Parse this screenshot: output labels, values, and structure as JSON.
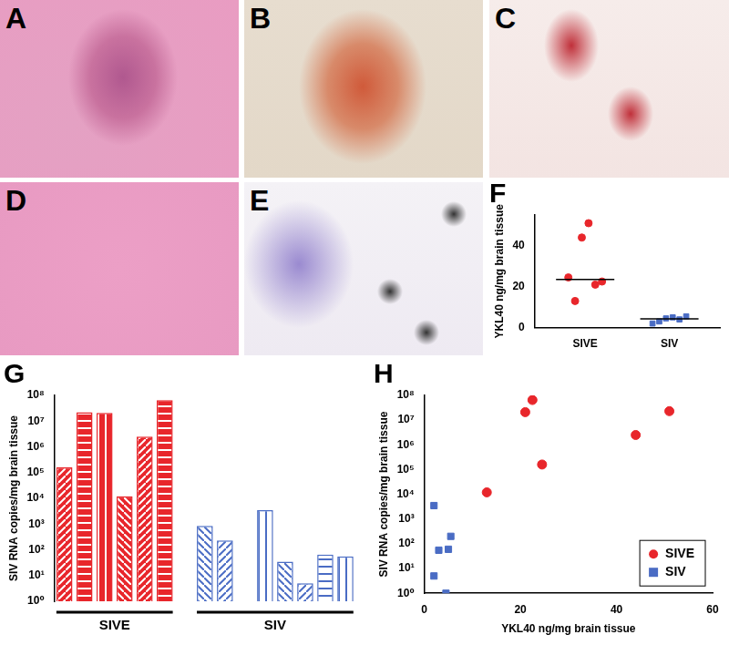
{
  "image_panels": [
    "A",
    "B",
    "C",
    "D",
    "E"
  ],
  "chart_data": [
    {
      "type": "scatter",
      "title": "F",
      "ylabel": "YKL40 ng/mg brain tissue",
      "ylim": [
        0,
        55
      ],
      "yticks": [
        0,
        20,
        40
      ],
      "grid": false,
      "series": [
        {
          "name": "SIVE",
          "color": "#e8262b",
          "marker": "circle",
          "values": [
            24.5,
            13,
            44,
            51,
            21,
            22.5
          ],
          "median": 23.5
        },
        {
          "name": "SIV",
          "color": "#4a6cc4",
          "marker": "square",
          "values": [
            2,
            3,
            4.5,
            5,
            4,
            5.5
          ],
          "median": 4.3
        }
      ]
    },
    {
      "type": "bar",
      "title": "G",
      "ylabel": "SIV RNA copies/mg brain tissue",
      "log": "y",
      "ylim": [
        1,
        100000000
      ],
      "yticks": [
        {
          "value": 1,
          "label": "10⁰"
        },
        {
          "value": 10,
          "label": "10¹"
        },
        {
          "value": 100,
          "label": "10²"
        },
        {
          "value": 1000,
          "label": "10³"
        },
        {
          "value": 10000,
          "label": "10⁴"
        },
        {
          "value": 100000,
          "label": "10⁵"
        },
        {
          "value": 1000000,
          "label": "10⁶"
        },
        {
          "value": 10000000,
          "label": "10⁷"
        },
        {
          "value": 100000000,
          "label": "10⁸"
        }
      ],
      "grid": false,
      "categories": [
        null,
        null,
        null,
        null,
        null,
        null,
        null,
        null,
        null,
        null,
        null,
        null,
        null,
        null,
        null
      ],
      "series": [
        {
          "name": "SIVE",
          "color": "#e8262b",
          "values": [
            160000,
            22000000,
            21000000,
            12000,
            2500000,
            65000000,
            null,
            null,
            null,
            null,
            null,
            null,
            null,
            null,
            null
          ]
        },
        {
          "name": "SIV",
          "color": "#4a6cc4",
          "values": [
            null,
            null,
            null,
            null,
            null,
            null,
            null,
            850,
            230,
            null,
            3500,
            35,
            5,
            65,
            55
          ]
        }
      ]
    },
    {
      "type": "scatter",
      "title": "H",
      "xlabel": "YKL40 ng/mg brain tissue",
      "ylabel": "SIV RNA copies/mg brain tissue",
      "log": "y",
      "xlim": [
        0,
        60
      ],
      "xticks": [
        0,
        20,
        40,
        60
      ],
      "ylim": [
        1,
        100000000
      ],
      "yticks": [
        {
          "value": 1,
          "label": "10⁰"
        },
        {
          "value": 10,
          "label": "10¹"
        },
        {
          "value": 100,
          "label": "10²"
        },
        {
          "value": 1000,
          "label": "10³"
        },
        {
          "value": 10000,
          "label": "10⁴"
        },
        {
          "value": 100000,
          "label": "10⁵"
        },
        {
          "value": 1000000,
          "label": "10⁶"
        },
        {
          "value": 10000000,
          "label": "10⁷"
        },
        {
          "value": 100000000,
          "label": "10⁸"
        }
      ],
      "grid": false,
      "legend": "lower right",
      "series": [
        {
          "name": "SIVE",
          "color": "#e8262b",
          "marker": "circle",
          "x": [
            13,
            21,
            22.5,
            24.5,
            44,
            51
          ],
          "values": [
            12000,
            21000000,
            65000000,
            160000,
            2500000,
            23000000
          ]
        },
        {
          "name": "SIV",
          "color": "#4a6cc4",
          "marker": "square",
          "x": [
            2,
            2,
            3,
            5,
            5.5,
            4.5
          ],
          "values": [
            3500,
            5,
            55,
            60,
            200,
            1
          ]
        }
      ]
    }
  ]
}
